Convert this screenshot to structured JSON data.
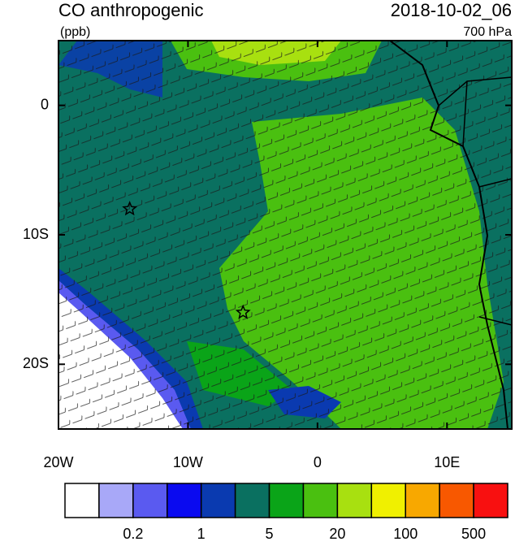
{
  "map": {
    "title": "CO anthropogenic",
    "units": "(ppb)",
    "time": "2018-10-02_06",
    "level": "700 hPa",
    "xlim": [
      -20,
      15
    ],
    "ylim": [
      -25,
      5
    ],
    "xticks": [
      {
        "value": -20,
        "label": "20W"
      },
      {
        "value": -10,
        "label": "10W"
      },
      0,
      {
        "value": 10,
        "label": "10E"
      }
    ],
    "yticks": [
      0,
      {
        "value": -10,
        "label": "10S"
      },
      {
        "value": -20,
        "label": "20S"
      }
    ],
    "stars": [
      {
        "lon": -14.5,
        "lat": -8
      },
      {
        "lon": -5.75,
        "lat": -16
      }
    ],
    "colorbar": {
      "colors": [
        "#ffffff",
        "#a8a8f8",
        "#5a5af0",
        "#0a0af0",
        "#0a3ab0",
        "#0a7060",
        "#0aa418",
        "#4ac010",
        "#a8e010",
        "#f0f000",
        "#f8a800",
        "#f85800",
        "#f81010"
      ],
      "labels": [
        0.2,
        1,
        5,
        20,
        100,
        500
      ]
    }
  }
}
